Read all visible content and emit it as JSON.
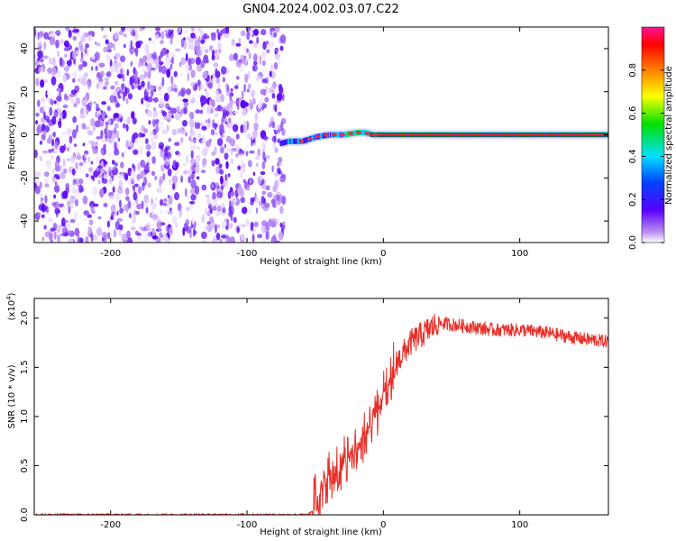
{
  "title": "GN04.2024.002.03.07.C22",
  "chart_data": [
    {
      "type": "heatmap",
      "name": "spectrogram",
      "xlabel": "Height of straight line (km)",
      "ylabel": "Frequency (Hz)",
      "xlim": [
        -256,
        165
      ],
      "ylim": [
        -50,
        50
      ],
      "x_ticks": [
        -200,
        -100,
        0,
        100
      ],
      "x_tick_labels": [
        "-200",
        "-100",
        "0",
        "100"
      ],
      "y_ticks": [
        40,
        20,
        0,
        -20,
        -40
      ],
      "y_tick_labels": [
        "40",
        "20",
        "0",
        "-20",
        "-40"
      ],
      "noise_region_x": [
        -256,
        -73
      ],
      "signal_track": {
        "description_free": true,
        "x": [
          -76,
          -70,
          -60,
          -50,
          -40,
          -30,
          -20,
          -14,
          -8,
          0,
          20,
          60,
          100,
          165
        ],
        "freq": [
          -4,
          -3,
          -3,
          -1,
          0,
          0,
          1,
          1,
          0,
          0,
          0,
          0,
          0,
          0
        ]
      },
      "colorbar": {
        "label": "Normalized spectral amplitude",
        "range": [
          0,
          1
        ],
        "ticks": [
          0.0,
          0.2,
          0.4,
          0.6,
          0.8
        ],
        "tick_labels": [
          "0.0",
          "0.2",
          "0.4",
          "0.6",
          "0.8"
        ]
      }
    },
    {
      "type": "line",
      "name": "snr",
      "xlabel": "Height of straight line (km)",
      "ylabel": "SNR (10 * v/v)",
      "scale_label": "(x10",
      "scale_exponent": "4",
      "scale_suffix": ")",
      "xlim": [
        -256,
        165
      ],
      "ylim": [
        0,
        2.2
      ],
      "x_ticks": [
        -200,
        -100,
        0,
        100
      ],
      "x_tick_labels": [
        "-200",
        "-100",
        "0",
        "100"
      ],
      "y_ticks": [
        0.0,
        0.5,
        1.0,
        1.5,
        2.0
      ],
      "y_tick_labels": [
        "0.0",
        "0.5",
        "1.0",
        "1.5",
        "2.0"
      ],
      "series": [
        {
          "name": "SNR",
          "color": "#e8302a",
          "x": [
            -256,
            -200,
            -150,
            -100,
            -70,
            -55,
            -52,
            -45,
            -40,
            -30,
            -20,
            -10,
            0,
            10,
            20,
            30,
            40,
            60,
            80,
            100,
            120,
            140,
            165
          ],
          "y": [
            0.0,
            0.0,
            0.0,
            0.0,
            0.0,
            0.0,
            0.04,
            0.35,
            0.45,
            0.55,
            0.7,
            0.95,
            1.25,
            1.55,
            1.75,
            1.85,
            1.95,
            1.92,
            1.88,
            1.88,
            1.85,
            1.8,
            1.76
          ]
        }
      ]
    }
  ]
}
